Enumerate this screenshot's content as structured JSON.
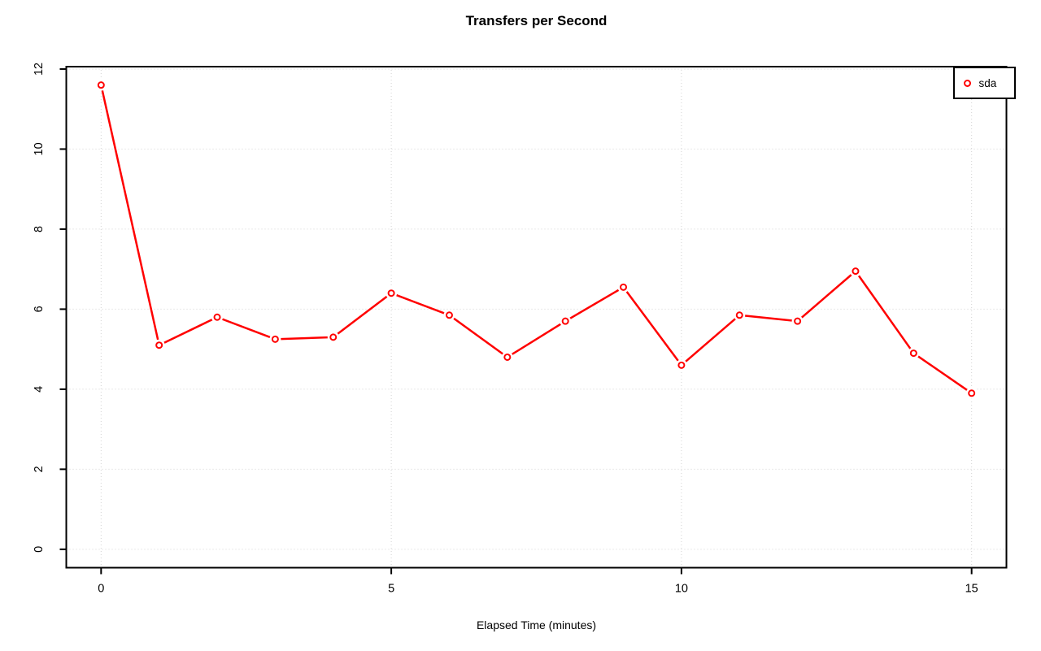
{
  "chart_data": {
    "type": "line",
    "title": "Transfers per Second",
    "xlabel": "Elapsed Time (minutes)",
    "ylabel": "",
    "series": [
      {
        "name": "sda",
        "color": "#ff0000",
        "marker": "open-circle",
        "x": [
          0,
          1,
          2,
          3,
          4,
          5,
          6,
          7,
          8,
          9,
          10,
          11,
          12,
          13,
          14,
          15
        ],
        "values": [
          11.6,
          5.1,
          5.8,
          5.25,
          5.3,
          6.4,
          5.85,
          4.8,
          5.7,
          6.55,
          4.6,
          5.85,
          5.7,
          6.95,
          4.9,
          3.9
        ]
      }
    ],
    "x_ticks": [
      0,
      5,
      10,
      15
    ],
    "y_ticks": [
      0,
      2,
      4,
      6,
      8,
      10,
      12
    ],
    "xlim": [
      -0.6,
      15.6
    ],
    "ylim": [
      -0.46,
      12.06
    ],
    "grid": true,
    "grid_color": "#d3d3d3",
    "grid_style": "dotted",
    "axis_color": "#000000",
    "background": "#ffffff",
    "legend": {
      "position": "top-right",
      "entries": [
        "sda"
      ]
    }
  }
}
